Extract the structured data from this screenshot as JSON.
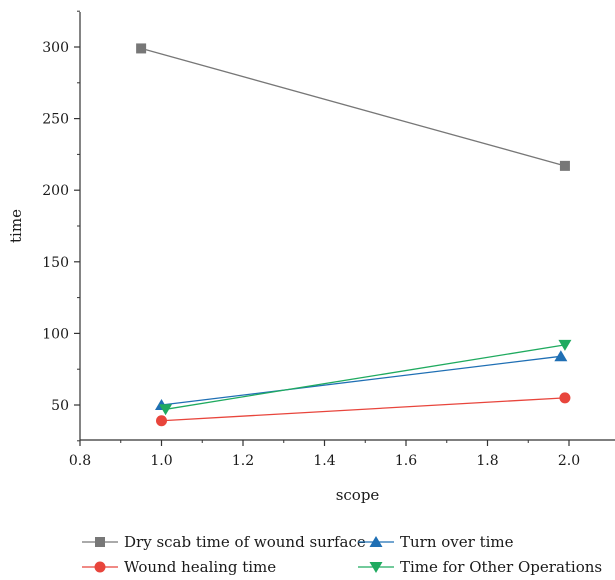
{
  "chart_data": {
    "type": "line",
    "xlabel": "scope",
    "ylabel": "time",
    "xlim": [
      0.8,
      2.1
    ],
    "ylim": [
      25,
      325
    ],
    "xticks": [
      0.8,
      1.0,
      1.2,
      1.4,
      1.6,
      1.8,
      2.0
    ],
    "xtick_labels": [
      "0.8",
      "1.0",
      "1.2",
      "1.4",
      "1.6",
      "1.8",
      "2.0"
    ],
    "yticks": [
      50,
      100,
      150,
      200,
      250,
      300
    ],
    "ytick_labels": [
      "50",
      "100",
      "150",
      "200",
      "250",
      "300"
    ],
    "grid": false,
    "legend_position": "bottom",
    "series": [
      {
        "name": "Dry scab time of wound surface",
        "color": "#777777",
        "marker": "square",
        "x": [
          0.95,
          1.99
        ],
        "y": [
          299,
          217
        ]
      },
      {
        "name": "Wound healing time",
        "color": "#e8453c",
        "marker": "circle",
        "x": [
          1.0,
          1.99
        ],
        "y": [
          39,
          55
        ]
      },
      {
        "name": "Turn over time",
        "color": "#1f6fb4",
        "marker": "triangle-up",
        "x": [
          1.0,
          1.98
        ],
        "y": [
          50,
          84
        ]
      },
      {
        "name": "Time for Other Operations",
        "color": "#1faa5f",
        "marker": "triangle-down",
        "x": [
          1.01,
          1.99
        ],
        "y": [
          47,
          92
        ]
      }
    ]
  }
}
